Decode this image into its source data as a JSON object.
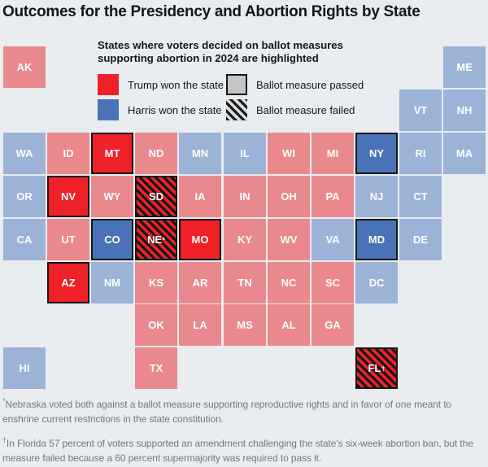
{
  "title": "Outcomes for the Presidency and Abortion Rights by State",
  "colors": {
    "background": "#e9edf0",
    "ink": "#161616",
    "trump_muted": "#e9898e",
    "harris_muted": "#9cb2d6",
    "trump_highlight": "#ee2128",
    "harris_highlight": "#4a73b7",
    "passed_gray": "#c4c5c7",
    "hatch_light": "#d9dadb",
    "footnote_gray": "#75787c"
  },
  "legend": {
    "heading": "States where voters decided on ballot measures supporting abortion in 2024 are highlighted",
    "items": [
      {
        "key": "trump",
        "swatch": "red-square",
        "label": "Trump won the state"
      },
      {
        "key": "passed",
        "swatch": "gray-bordered-square",
        "label": "Ballot measure passed"
      },
      {
        "key": "harris",
        "swatch": "blue-square",
        "label": "Harris won the state"
      },
      {
        "key": "failed",
        "swatch": "black-hatched-square",
        "label": "Ballot measure failed"
      }
    ]
  },
  "chart_data": {
    "type": "heatmap",
    "subtype": "state-tile-cartogram",
    "title": "Outcomes for the Presidency and Abortion Rights by State",
    "grid": {
      "columns": 11,
      "rows": 8
    },
    "encoding": {
      "winner": "tile color (red = Trump, blue = Harris; bright + black border = 2024 abortion ballot measure state)",
      "measure": "none | passed (solid bright fill, black border) | failed (black diagonal hatching over bright fill)"
    },
    "states": [
      {
        "code": "AK",
        "label": "AK",
        "col": 0,
        "row": 0,
        "winner": "trump",
        "measure": "none"
      },
      {
        "code": "ME",
        "label": "ME",
        "col": 10,
        "row": 0,
        "winner": "harris",
        "measure": "none"
      },
      {
        "code": "VT",
        "label": "VT",
        "col": 9,
        "row": 1,
        "winner": "harris",
        "measure": "none"
      },
      {
        "code": "NH",
        "label": "NH",
        "col": 10,
        "row": 1,
        "winner": "harris",
        "measure": "none"
      },
      {
        "code": "WA",
        "label": "WA",
        "col": 0,
        "row": 2,
        "winner": "harris",
        "measure": "none"
      },
      {
        "code": "ID",
        "label": "ID",
        "col": 1,
        "row": 2,
        "winner": "trump",
        "measure": "none"
      },
      {
        "code": "MT",
        "label": "MT",
        "col": 2,
        "row": 2,
        "winner": "trump",
        "measure": "passed"
      },
      {
        "code": "ND",
        "label": "ND",
        "col": 3,
        "row": 2,
        "winner": "trump",
        "measure": "none"
      },
      {
        "code": "MN",
        "label": "MN",
        "col": 4,
        "row": 2,
        "winner": "harris",
        "measure": "none"
      },
      {
        "code": "IL",
        "label": "IL",
        "col": 5,
        "row": 2,
        "winner": "harris",
        "measure": "none"
      },
      {
        "code": "WI",
        "label": "WI",
        "col": 6,
        "row": 2,
        "winner": "trump",
        "measure": "none"
      },
      {
        "code": "MI",
        "label": "MI",
        "col": 7,
        "row": 2,
        "winner": "trump",
        "measure": "none"
      },
      {
        "code": "NY",
        "label": "NY",
        "col": 8,
        "row": 2,
        "winner": "harris",
        "measure": "passed"
      },
      {
        "code": "RI",
        "label": "RI",
        "col": 9,
        "row": 2,
        "winner": "harris",
        "measure": "none"
      },
      {
        "code": "MA",
        "label": "MA",
        "col": 10,
        "row": 2,
        "winner": "harris",
        "measure": "none"
      },
      {
        "code": "OR",
        "label": "OR",
        "col": 0,
        "row": 3,
        "winner": "harris",
        "measure": "none"
      },
      {
        "code": "NV",
        "label": "NV",
        "col": 1,
        "row": 3,
        "winner": "trump",
        "measure": "passed"
      },
      {
        "code": "WY",
        "label": "WY",
        "col": 2,
        "row": 3,
        "winner": "trump",
        "measure": "none"
      },
      {
        "code": "SD",
        "label": "SD",
        "col": 3,
        "row": 3,
        "winner": "trump",
        "measure": "failed"
      },
      {
        "code": "IA",
        "label": "IA",
        "col": 4,
        "row": 3,
        "winner": "trump",
        "measure": "none"
      },
      {
        "code": "IN",
        "label": "IN",
        "col": 5,
        "row": 3,
        "winner": "trump",
        "measure": "none"
      },
      {
        "code": "OH",
        "label": "OH",
        "col": 6,
        "row": 3,
        "winner": "trump",
        "measure": "none"
      },
      {
        "code": "PA",
        "label": "PA",
        "col": 7,
        "row": 3,
        "winner": "trump",
        "measure": "none"
      },
      {
        "code": "NJ",
        "label": "NJ",
        "col": 8,
        "row": 3,
        "winner": "harris",
        "measure": "none"
      },
      {
        "code": "CT",
        "label": "CT",
        "col": 9,
        "row": 3,
        "winner": "harris",
        "measure": "none"
      },
      {
        "code": "CA",
        "label": "CA",
        "col": 0,
        "row": 4,
        "winner": "harris",
        "measure": "none"
      },
      {
        "code": "UT",
        "label": "UT",
        "col": 1,
        "row": 4,
        "winner": "trump",
        "measure": "none"
      },
      {
        "code": "CO",
        "label": "CO",
        "col": 2,
        "row": 4,
        "winner": "harris",
        "measure": "passed"
      },
      {
        "code": "NE",
        "label": "NE*",
        "col": 3,
        "row": 4,
        "winner": "trump",
        "measure": "failed"
      },
      {
        "code": "MO",
        "label": "MO",
        "col": 4,
        "row": 4,
        "winner": "trump",
        "measure": "passed"
      },
      {
        "code": "KY",
        "label": "KY",
        "col": 5,
        "row": 4,
        "winner": "trump",
        "measure": "none"
      },
      {
        "code": "WV",
        "label": "WV",
        "col": 6,
        "row": 4,
        "winner": "trump",
        "measure": "none"
      },
      {
        "code": "VA",
        "label": "VA",
        "col": 7,
        "row": 4,
        "winner": "harris",
        "measure": "none"
      },
      {
        "code": "MD",
        "label": "MD",
        "col": 8,
        "row": 4,
        "winner": "harris",
        "measure": "passed"
      },
      {
        "code": "DE",
        "label": "DE",
        "col": 9,
        "row": 4,
        "winner": "harris",
        "measure": "none"
      },
      {
        "code": "AZ",
        "label": "AZ",
        "col": 1,
        "row": 5,
        "winner": "trump",
        "measure": "passed"
      },
      {
        "code": "NM",
        "label": "NM",
        "col": 2,
        "row": 5,
        "winner": "harris",
        "measure": "none"
      },
      {
        "code": "KS",
        "label": "KS",
        "col": 3,
        "row": 5,
        "winner": "trump",
        "measure": "none"
      },
      {
        "code": "AR",
        "label": "AR",
        "col": 4,
        "row": 5,
        "winner": "trump",
        "measure": "none"
      },
      {
        "code": "TN",
        "label": "TN",
        "col": 5,
        "row": 5,
        "winner": "trump",
        "measure": "none"
      },
      {
        "code": "NC",
        "label": "NC",
        "col": 6,
        "row": 5,
        "winner": "trump",
        "measure": "none"
      },
      {
        "code": "SC",
        "label": "SC",
        "col": 7,
        "row": 5,
        "winner": "trump",
        "measure": "none"
      },
      {
        "code": "DC",
        "label": "DC",
        "col": 8,
        "row": 5,
        "winner": "harris",
        "measure": "none"
      },
      {
        "code": "OK",
        "label": "OK",
        "col": 3,
        "row": 6,
        "winner": "trump",
        "measure": "none"
      },
      {
        "code": "LA",
        "label": "LA",
        "col": 4,
        "row": 6,
        "winner": "trump",
        "measure": "none"
      },
      {
        "code": "MS",
        "label": "MS",
        "col": 5,
        "row": 6,
        "winner": "trump",
        "measure": "none"
      },
      {
        "code": "AL",
        "label": "AL",
        "col": 6,
        "row": 6,
        "winner": "trump",
        "measure": "none"
      },
      {
        "code": "GA",
        "label": "GA",
        "col": 7,
        "row": 6,
        "winner": "trump",
        "measure": "none"
      },
      {
        "code": "HI",
        "label": "HI",
        "col": 0,
        "row": 7,
        "winner": "harris",
        "measure": "none"
      },
      {
        "code": "TX",
        "label": "TX",
        "col": 3,
        "row": 7,
        "winner": "trump",
        "measure": "none"
      },
      {
        "code": "FL",
        "label": "FL†",
        "col": 8,
        "row": 7,
        "winner": "trump",
        "measure": "failed"
      }
    ]
  },
  "footnotes": [
    {
      "marker": "*",
      "text": "Nebraska voted both against a ballot measure supporting reproductive rights and in favor of one meant to enshrine current restrictions in the state constitution."
    },
    {
      "marker": "†",
      "text": "In Florida 57 percent of voters supported an amendment challenging the state’s six-week abortion ban, but the measure failed because a 60 percent supermajority was required to pass it."
    }
  ]
}
